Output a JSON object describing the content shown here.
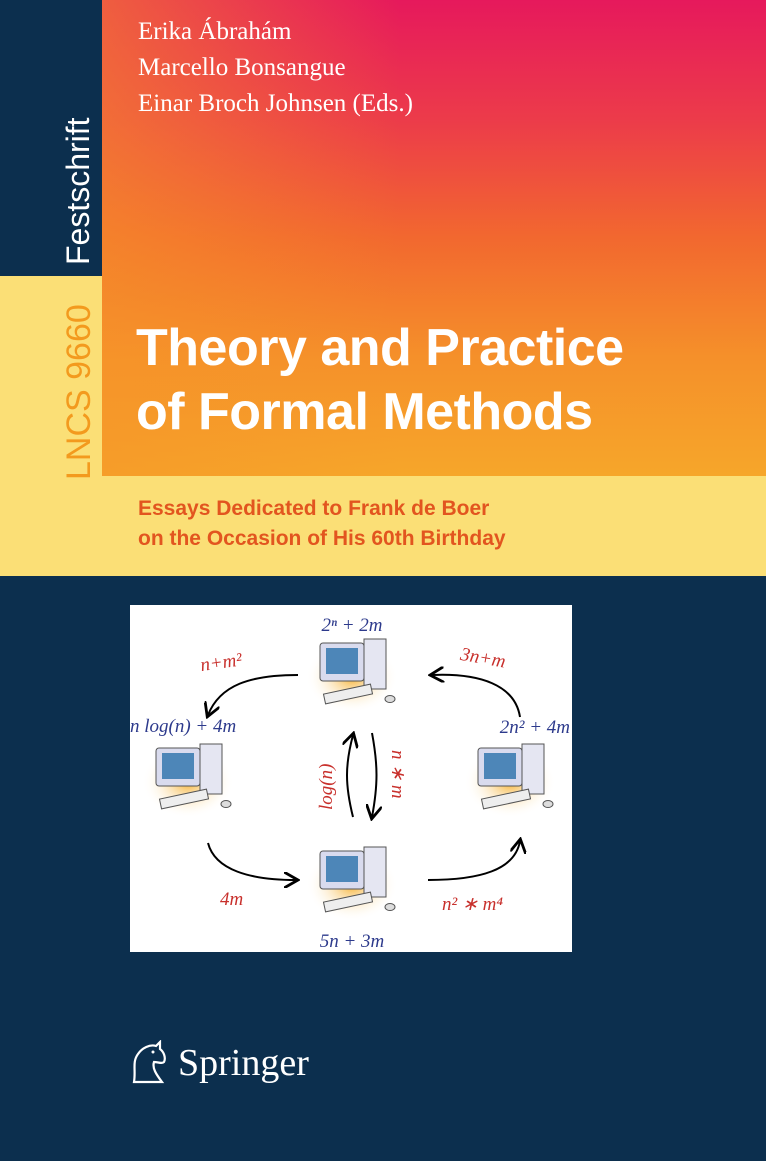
{
  "series_label": "Festschrift",
  "volume": "LNCS 9660",
  "editors": [
    "Erika Ábrahám",
    "Marcello Bonsangue",
    "Einar Broch Johnsen (Eds.)"
  ],
  "title": [
    "Theory and Practice",
    "of Formal Methods"
  ],
  "subtitle": [
    "Essays Dedicated to Frank de Boer",
    "on the Occasion of His 60th Birthday"
  ],
  "figure": {
    "node_labels": {
      "top": "2ⁿ + 2m",
      "left": "n log(n) + 4m",
      "right": "2n² + 4m",
      "bottom": "5n + 3m"
    },
    "edge_labels": {
      "top_left": "n+m²",
      "top_right": "3n+m",
      "center_up": "log(n)",
      "center_down": "n ∗ m",
      "bottom_left": "4m",
      "bottom_right": "n² ∗ m⁴"
    },
    "node_color": "#2d3a8c",
    "edge_color": "#c8302c"
  },
  "publisher": "Springer",
  "colors": {
    "navy": "#0c2f4e",
    "yellow": "#fbdf76",
    "orange": "#f39a1e",
    "magenta": "#e6195c"
  }
}
